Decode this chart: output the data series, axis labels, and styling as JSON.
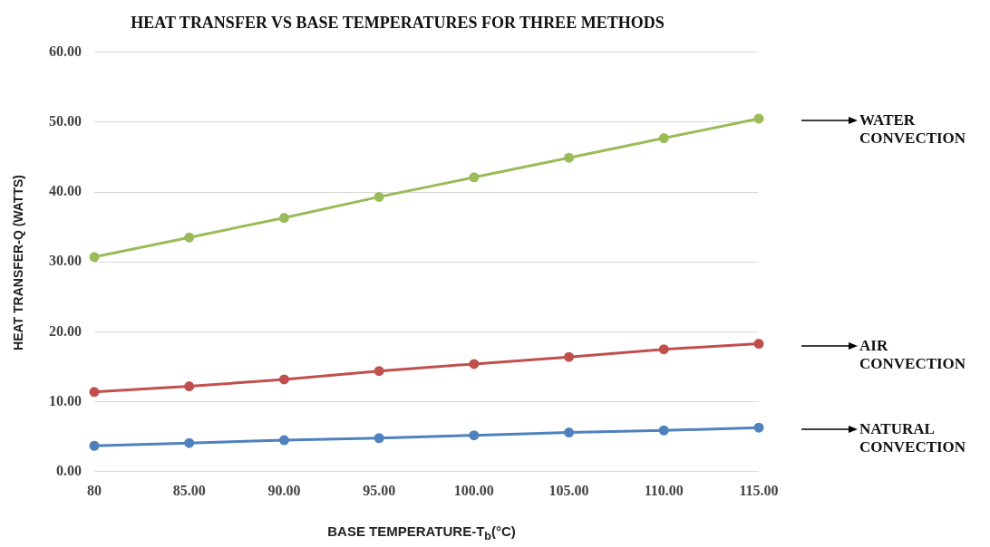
{
  "chart_data": {
    "type": "line",
    "title": "HEAT TRANSFER VS BASE TEMPERATURES FOR THREE METHODS",
    "xlabel": "BASE TEMPERATURE-T$_{b}$(°C)",
    "ylabel": "HEAT TRANSFER-Q (WATTS)",
    "categories": [
      "80",
      "85.00",
      "90.00",
      "95.00",
      "100.00",
      "105.00",
      "110.00",
      "115.00"
    ],
    "series": [
      {
        "name": "WATER CONVECTION",
        "color": "#9bbb59",
        "values": [
          30.7,
          33.5,
          36.3,
          39.3,
          42.1,
          44.9,
          47.7,
          50.5
        ]
      },
      {
        "name": "AIR CONVECTION",
        "color": "#c0504d",
        "values": [
          11.4,
          12.2,
          13.2,
          14.4,
          15.4,
          16.4,
          17.5,
          18.3
        ]
      },
      {
        "name": "NATURAL CONVECTION",
        "color": "#4f81bd",
        "values": [
          3.7,
          4.1,
          4.5,
          4.8,
          5.2,
          5.6,
          5.9,
          6.3
        ]
      }
    ],
    "ylim": [
      0,
      60
    ],
    "yticks": [
      {
        "value": 0,
        "label": "0.00"
      },
      {
        "value": 10,
        "label": "10.00"
      },
      {
        "value": 20,
        "label": "20.00"
      },
      {
        "value": 30,
        "label": "30.00"
      },
      {
        "value": 40,
        "label": "40.00"
      },
      {
        "value": 50,
        "label": "50.00"
      },
      {
        "value": 60,
        "label": "60.00"
      }
    ],
    "grid": "y",
    "marker": "circle",
    "line_style": "solid",
    "legend": false
  }
}
